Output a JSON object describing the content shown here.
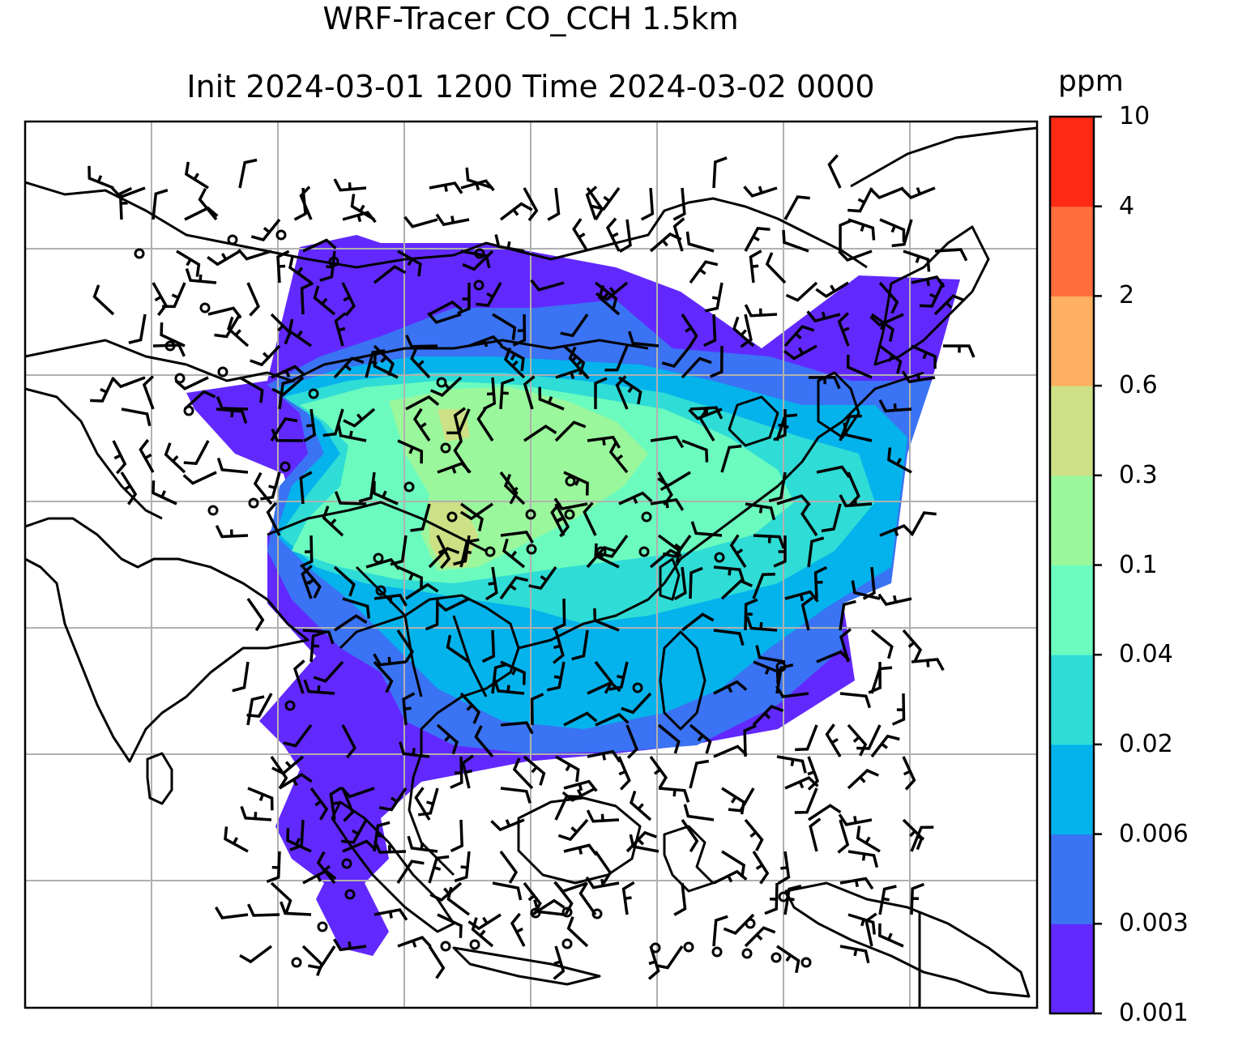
{
  "title": {
    "line1": "WRF-Tracer CO_CCH 1.5km",
    "line2": "Init 2024-03-01 1200 Time 2024-03-02 0000"
  },
  "colorbar": {
    "unit": "ppm",
    "levels": [
      "0.001",
      "0.003",
      "0.006",
      "0.02",
      "0.04",
      "0.1",
      "0.3",
      "0.6",
      "2",
      "4",
      "10"
    ],
    "colors": [
      "#6229ff",
      "#3a73f4",
      "#04b3ec",
      "#2fdcd6",
      "#6bfbbf",
      "#9bf79c",
      "#cde085",
      "#ffb060",
      "#ff6e3c",
      "#ff2a14"
    ]
  },
  "map": {
    "gridlines": true,
    "grid_color": "#b0b0b0",
    "coastline_color": "#000000",
    "field_name": "CO_CCH tracer concentration",
    "wind_display": "wind barbs"
  }
}
